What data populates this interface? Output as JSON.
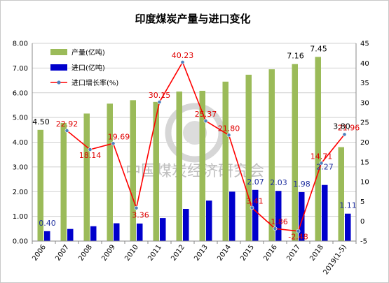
{
  "chart_data": {
    "type": "bar",
    "title": "印度煤炭产量与进口变化",
    "categories": [
      "2006",
      "2007",
      "2008",
      "2009",
      "2010",
      "2011",
      "2012",
      "2013",
      "2014",
      "2015",
      "2016",
      "2017",
      "2018",
      "2019(1-5)"
    ],
    "series": [
      {
        "name": "产量(亿吨)",
        "kind": "bar",
        "axis": "left",
        "color": "#9bbb59",
        "values": [
          4.5,
          4.78,
          5.16,
          5.56,
          5.7,
          5.63,
          6.05,
          6.08,
          6.45,
          6.73,
          6.95,
          7.16,
          7.45,
          3.8
        ]
      },
      {
        "name": "进口(亿吨)",
        "kind": "bar",
        "axis": "left",
        "color": "#0000cc",
        "values": [
          0.4,
          0.49,
          0.6,
          0.72,
          0.71,
          0.93,
          1.3,
          1.64,
          2.0,
          2.07,
          2.03,
          1.98,
          2.27,
          1.11
        ]
      },
      {
        "name": "进口增长率(%)",
        "kind": "line",
        "axis": "right",
        "color": "#ff0000",
        "values": [
          null,
          22.92,
          18.14,
          19.69,
          3.36,
          30.15,
          40.23,
          25.37,
          21.8,
          3.41,
          -1.86,
          -2.48,
          14.71,
          21.96
        ]
      }
    ],
    "production_labels": {
      "0": "4.50",
      "11": "7.16",
      "12": "7.45",
      "13": "3.80"
    },
    "import_labels": {
      "0": "0.40",
      "9": "2.07",
      "10": "2.03",
      "11": "1.98",
      "12": "2.27",
      "13": "1.11"
    },
    "rate_labels": {
      "1": "22.92",
      "2": "18.14",
      "3": "19.69",
      "4": "3.36",
      "5": "30.15",
      "6": "40.23",
      "7": "25.37",
      "8": "21.80",
      "9": "3.41",
      "10": "-1.86",
      "11": "-2.48",
      "12": "14.71",
      "13": "21.96"
    },
    "ylim_left": [
      0,
      8
    ],
    "ylim_right": [
      -5,
      45
    ],
    "yticks_left": [
      "0.00",
      "1.00",
      "2.00",
      "3.00",
      "4.00",
      "5.00",
      "6.00",
      "7.00",
      "8.00"
    ],
    "yticks_right": [
      "-5",
      "0",
      "5",
      "10",
      "15",
      "20",
      "25",
      "30",
      "35",
      "40",
      "45"
    ],
    "grid": true,
    "legend_position": "top-left",
    "watermark": "中国煤炭经济研究会"
  }
}
